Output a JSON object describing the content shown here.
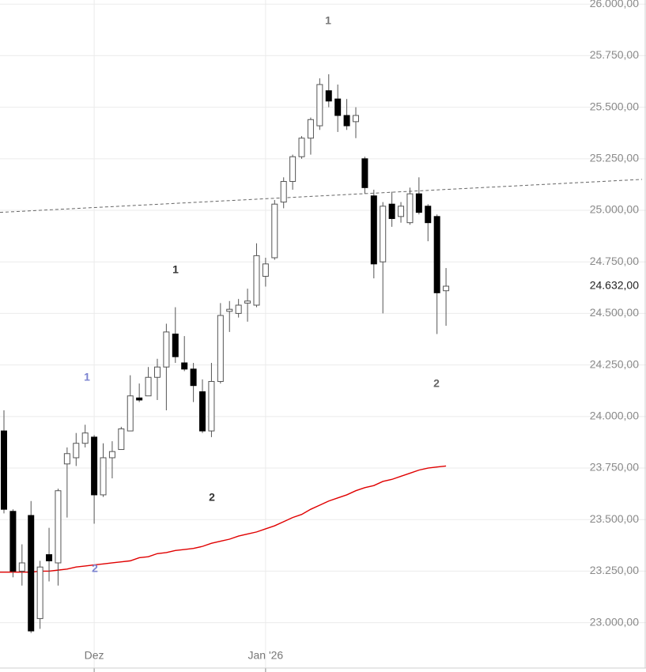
{
  "chart_data": {
    "type": "candlestick",
    "categories": [
      null,
      null,
      null,
      null,
      null,
      null,
      null,
      null,
      null,
      null,
      "Dez",
      null,
      null,
      null,
      null,
      null,
      null,
      null,
      null,
      null,
      null,
      null,
      null,
      null,
      null,
      null,
      null,
      null,
      null,
      "Jan '26",
      null,
      null,
      null,
      null,
      null,
      null,
      null,
      null,
      null,
      null,
      null,
      null,
      null,
      null,
      null,
      null,
      null,
      null,
      null,
      null
    ],
    "open": [
      23930,
      23540,
      23250,
      23520,
      23020,
      23330,
      23290,
      23770,
      23800,
      23870,
      23900,
      23620,
      23800,
      23840,
      23930,
      24090,
      24100,
      24190,
      24240,
      24400,
      24260,
      24230,
      24120,
      23930,
      24170,
      24510,
      24500,
      24550,
      24540,
      24680,
      24770,
      25040,
      25140,
      25260,
      25350,
      25410,
      25580,
      25540,
      25460,
      25430,
      25250,
      25070,
      24750,
      25030,
      24970,
      24940,
      25080,
      25020,
      24970,
      24610
    ],
    "high": [
      24030,
      23550,
      23380,
      23590,
      23300,
      23460,
      23650,
      23850,
      23920,
      23960,
      23910,
      23870,
      23880,
      23950,
      24200,
      24160,
      24240,
      24280,
      24450,
      24530,
      24390,
      24260,
      24180,
      24260,
      24550,
      24560,
      24570,
      24620,
      24840,
      24770,
      25050,
      25160,
      25270,
      25360,
      25450,
      25640,
      25660,
      25610,
      25540,
      25500,
      25260,
      25100,
      25040,
      25090,
      25040,
      25110,
      25160,
      25030,
      24980,
      24720
    ],
    "low": [
      23530,
      23220,
      23180,
      22950,
      22970,
      23200,
      23180,
      23510,
      23760,
      23850,
      23480,
      23610,
      23700,
      23840,
      23930,
      24070,
      24100,
      24080,
      24030,
      24260,
      24220,
      24070,
      23920,
      23900,
      24160,
      24410,
      24480,
      24460,
      24530,
      24630,
      24760,
      25010,
      25100,
      25250,
      25270,
      25390,
      25500,
      25380,
      25390,
      25350,
      25080,
      24670,
      24500,
      24920,
      24940,
      24930,
      24980,
      24850,
      24400,
      24440
    ],
    "close": [
      23550,
      23250,
      23290,
      22960,
      23270,
      23300,
      23640,
      23820,
      23870,
      23920,
      23620,
      23800,
      23830,
      23940,
      24100,
      24080,
      24190,
      24240,
      24410,
      24290,
      24230,
      24150,
      23930,
      24170,
      24490,
      24520,
      24540,
      24560,
      24780,
      24740,
      25030,
      25140,
      25260,
      25350,
      25440,
      25610,
      25530,
      25460,
      25410,
      25460,
      25110,
      24740,
      25020,
      24960,
      25020,
      25080,
      24990,
      24940,
      24600,
      24632
    ],
    "up_color": "#ffffff",
    "down_color": "#000000",
    "ma": {
      "color": "#e00000",
      "values": [
        23245,
        23245,
        23245,
        23245,
        23250,
        23250,
        23255,
        23260,
        23270,
        23275,
        23280,
        23285,
        23290,
        23295,
        23300,
        23315,
        23320,
        23335,
        23340,
        23350,
        23355,
        23360,
        23370,
        23385,
        23395,
        23405,
        23420,
        23430,
        23440,
        23455,
        23470,
        23490,
        23510,
        23525,
        23550,
        23570,
        23590,
        23605,
        23620,
        23640,
        23655,
        23665,
        23685,
        23695,
        23710,
        23725,
        23740,
        23750,
        23755,
        23760
      ]
    },
    "trendline": {
      "start": 24990,
      "end": 25150,
      "color": "#666666"
    },
    "last_price": {
      "value": 24632,
      "label": "24.632,00"
    },
    "annotations": [
      {
        "text": "1",
        "color": "#777777"
      },
      {
        "text": "1",
        "color": "#333333"
      },
      {
        "text": "1",
        "color": "#7b83d0"
      },
      {
        "text": "2",
        "color": "#333333"
      },
      {
        "text": "2",
        "color": "#7b83d0"
      },
      {
        "text": "2",
        "color": "#666666"
      }
    ],
    "ylim": [
      22780,
      26020
    ],
    "yticks": [
      {
        "value": 23000,
        "label": "23.000,00"
      },
      {
        "value": 23250,
        "label": "23.250,00"
      },
      {
        "value": 23500,
        "label": "23.500,00"
      },
      {
        "value": 23750,
        "label": "23.750,00"
      },
      {
        "value": 24000,
        "label": "24.000,00"
      },
      {
        "value": 24250,
        "label": "24.250,00"
      },
      {
        "value": 24500,
        "label": "24.500,00"
      },
      {
        "value": 24750,
        "label": "24.750,00"
      },
      {
        "value": 25000,
        "label": "25.000,00"
      },
      {
        "value": 25250,
        "label": "25.250,00"
      },
      {
        "value": 25500,
        "label": "25.500,00"
      },
      {
        "value": 25750,
        "label": "25.750,00"
      },
      {
        "value": 26000,
        "label": "26.000,00"
      }
    ],
    "grid": true
  }
}
